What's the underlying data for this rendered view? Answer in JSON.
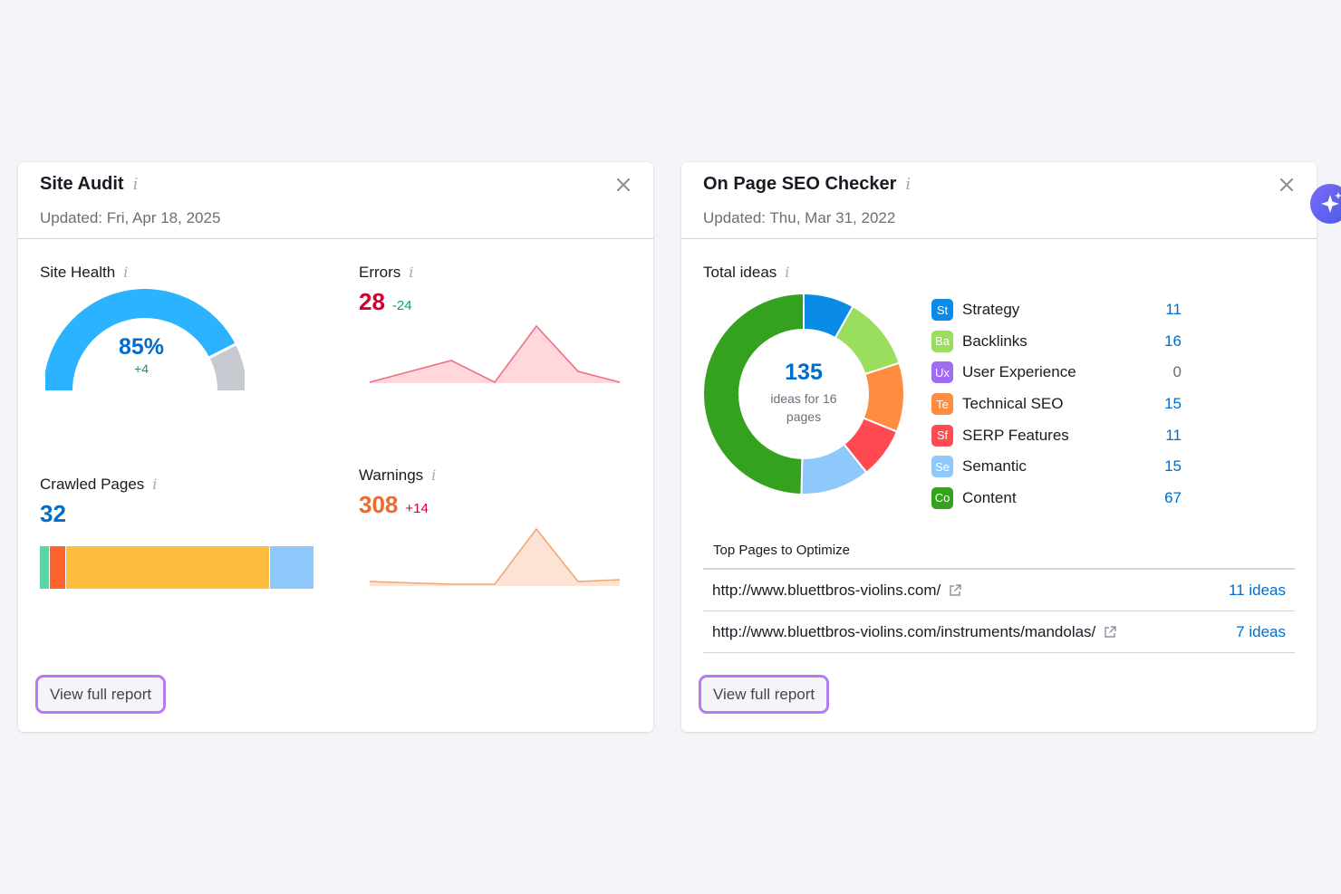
{
  "site_audit": {
    "title": "Site Audit",
    "updated": "Updated: Fri, Apr 18, 2025",
    "site_health": {
      "label": "Site Health",
      "value": "85%",
      "delta": "+4",
      "fraction": 0.85
    },
    "errors": {
      "label": "Errors",
      "value": "28",
      "delta": "-24",
      "color": "#d1002f"
    },
    "warnings": {
      "label": "Warnings",
      "value": "308",
      "delta": "+14",
      "color": "#ee6a2c"
    },
    "crawled_pages": {
      "label": "Crawled Pages",
      "value": "32",
      "segments": [
        {
          "color": "#5ad5a3",
          "share": 0.033
        },
        {
          "color": "#ff642d",
          "share": 0.056
        },
        {
          "color": "#fdbe40",
          "share": 0.751
        },
        {
          "color": "#8fc9fb",
          "share": 0.16
        }
      ]
    },
    "view_report": "View full report"
  },
  "seo_checker": {
    "title": "On Page SEO Checker",
    "updated": "Updated: Thu, Mar 31, 2022",
    "total_ideas": {
      "label": "Total ideas",
      "value": "135",
      "caption_line1": "ideas for 16",
      "caption_line2": "pages"
    },
    "legend": [
      {
        "abbr": "St",
        "label": "Strategy",
        "count": "11",
        "value": 11,
        "color": "#0a8be6"
      },
      {
        "abbr": "Ba",
        "label": "Backlinks",
        "count": "16",
        "value": 16,
        "color": "#9bdd5c"
      },
      {
        "abbr": "Ux",
        "label": "User Experience",
        "count": "0",
        "value": 0,
        "color": "#a06df2"
      },
      {
        "abbr": "Te",
        "label": "Technical SEO",
        "count": "15",
        "value": 15,
        "color": "#ff8c3f"
      },
      {
        "abbr": "Sf",
        "label": "SERP Features",
        "count": "11",
        "value": 11,
        "color": "#ff4a51"
      },
      {
        "abbr": "Se",
        "label": "Semantic",
        "count": "15",
        "value": 15,
        "color": "#8fc9fb"
      },
      {
        "abbr": "Co",
        "label": "Content",
        "count": "67",
        "value": 67,
        "color": "#34a11f"
      }
    ],
    "top_pages": {
      "title": "Top Pages to Optimize",
      "rows": [
        {
          "url": "http://www.bluettbros-violins.com/",
          "ideas": "11 ideas"
        },
        {
          "url": "http://www.bluettbros-violins.com/instruments/mandolas/",
          "ideas": "7 ideas"
        }
      ]
    },
    "view_report": "View full report"
  }
}
